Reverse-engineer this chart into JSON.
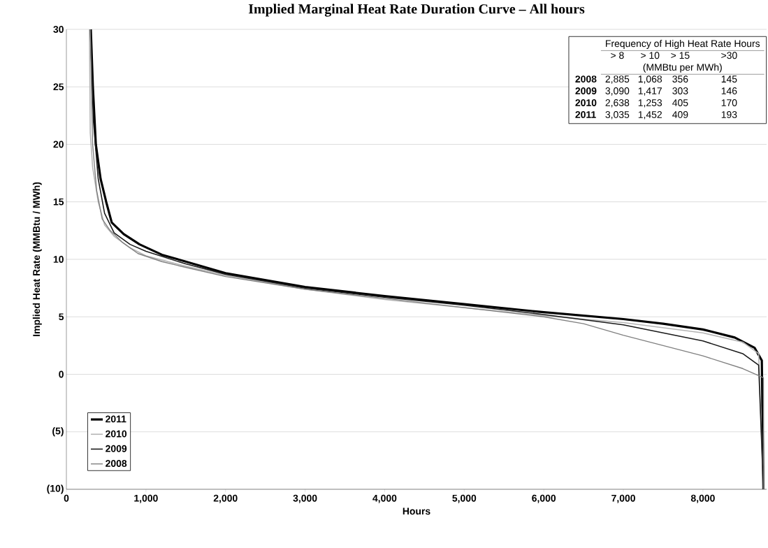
{
  "chart_data": {
    "type": "line",
    "title": "Implied Marginal Heat Rate Duration Curve – All hours",
    "xlabel": "Hours",
    "ylabel": "Implied Heat Rate (MMBtu / MWh)",
    "xlim": [
      0,
      8800
    ],
    "ylim": [
      -10,
      30
    ],
    "xticks": [
      0,
      {
        "value": 1000,
        "label": "1,000"
      },
      {
        "value": 2000,
        "label": "2,000"
      },
      {
        "value": 3000,
        "label": "3,000"
      },
      {
        "value": 4000,
        "label": "4,000"
      },
      {
        "value": 5000,
        "label": "5,000"
      },
      {
        "value": 6000,
        "label": "6,000"
      },
      {
        "value": 7000,
        "label": "7,000"
      },
      {
        "value": 8000,
        "label": "8,000"
      }
    ],
    "yticks": [
      {
        "value": -10,
        "label": "(10)"
      },
      {
        "value": -5,
        "label": "(5)"
      },
      0,
      5,
      10,
      15,
      20,
      25,
      30
    ],
    "grid": "y",
    "legend": "bottom left",
    "marker": "none",
    "line_style": "solid",
    "series": [
      {
        "name": "2011",
        "color": "#000000",
        "x": [
          307,
          333,
          370,
          430,
          500,
          570,
          720,
          920,
          1200,
          1500,
          2000,
          3000,
          4000,
          5000,
          6000,
          7000,
          7500,
          8000,
          8400,
          8650,
          8740,
          8760
        ],
        "values": [
          30,
          25,
          20,
          17,
          15,
          13.2,
          12.2,
          11.3,
          10.4,
          9.8,
          8.8,
          7.6,
          6.8,
          6.1,
          5.4,
          4.8,
          4.4,
          3.9,
          3.2,
          2.3,
          1.2,
          -10
        ]
      },
      {
        "name": "2010",
        "color": "#b4b4b4",
        "x": [
          290,
          300,
          330,
          400,
          480,
          600,
          800,
          1000,
          1500,
          2000,
          3000,
          4000,
          5000,
          6000,
          7000,
          8000,
          8500,
          8700,
          8760
        ],
        "values": [
          30,
          21,
          18,
          15,
          13,
          12,
          11,
          10.3,
          9.4,
          8.6,
          7.4,
          6.5,
          5.8,
          5.1,
          4.5,
          3.6,
          2.8,
          1.8,
          -10
        ]
      },
      {
        "name": "2009",
        "color": "#1a1a1a",
        "x": [
          300,
          340,
          400,
          480,
          600,
          800,
          1000,
          1500,
          2000,
          3000,
          4000,
          5000,
          6000,
          7000,
          7500,
          8000,
          8500,
          8700,
          8760
        ],
        "values": [
          30,
          22,
          17,
          14,
          12.3,
          11.3,
          10.7,
          9.6,
          8.7,
          7.5,
          6.7,
          6.0,
          5.2,
          4.3,
          3.6,
          2.9,
          1.8,
          0.8,
          -10
        ]
      },
      {
        "name": "2008",
        "color": "#808080",
        "x": [
          300,
          330,
          380,
          450,
          550,
          700,
          900,
          1200,
          1500,
          2000,
          3000,
          4000,
          5000,
          6000,
          6500,
          7000,
          7500,
          8000,
          8500,
          8760,
          8765
        ],
        "values": [
          30,
          20,
          16,
          13.5,
          12.5,
          11.5,
          10.5,
          9.8,
          9.3,
          8.5,
          7.4,
          6.6,
          5.8,
          5.0,
          4.4,
          3.4,
          2.5,
          1.6,
          0.5,
          -0.3,
          -10
        ]
      }
    ],
    "annotations": [
      "Frequency of High Heat Rate Hours",
      "> 8",
      "> 10",
      "> 15",
      ">30",
      "(MMBtu per MWh)",
      "2008",
      "2,885",
      "1,068",
      "356",
      "145",
      "2009",
      "3,090",
      "1,417",
      "303",
      "146",
      "2010",
      "2,638",
      "1,253",
      "405",
      "170",
      "2011",
      "3,035",
      "1,452",
      "409",
      "193"
    ]
  }
}
